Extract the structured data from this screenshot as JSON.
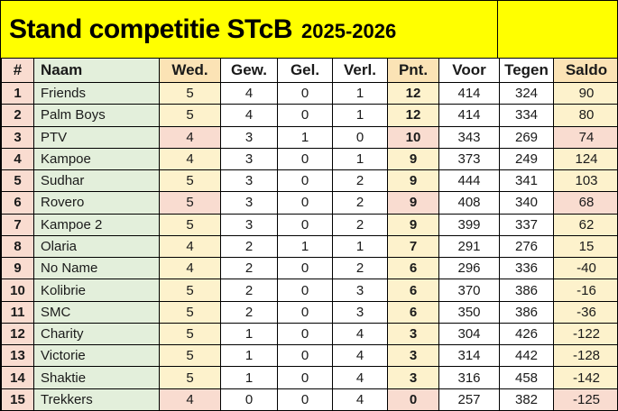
{
  "title": {
    "main": "Stand competitie STcB",
    "season": "2025-2026"
  },
  "colors": {
    "banner": "#FFFF00",
    "pink": "#F9DCD0",
    "green": "#E3EFDB",
    "yellow": "#FDF2CC",
    "tan": "#FBE3B5",
    "white": "#FFFFFF",
    "border": "#000000",
    "ink": "#1A1A1A"
  },
  "table": {
    "columns": [
      {
        "key": "pos",
        "label": "#"
      },
      {
        "key": "naam",
        "label": "Naam"
      },
      {
        "key": "wed",
        "label": "Wed."
      },
      {
        "key": "gew",
        "label": "Gew."
      },
      {
        "key": "gel",
        "label": "Gel."
      },
      {
        "key": "verl",
        "label": "Verl."
      },
      {
        "key": "pnt",
        "label": "Pnt."
      },
      {
        "key": "voor",
        "label": "Voor"
      },
      {
        "key": "tegen",
        "label": "Tegen"
      },
      {
        "key": "saldo",
        "label": "Saldo"
      }
    ],
    "highlight_columns": [
      "wed",
      "pnt",
      "saldo"
    ],
    "rows": [
      {
        "pos": "1",
        "naam": "Friends",
        "wed": "5",
        "gew": "4",
        "gel": "0",
        "verl": "1",
        "pnt": "12",
        "voor": "414",
        "tegen": "324",
        "saldo": "90",
        "tone": "yellow"
      },
      {
        "pos": "2",
        "naam": "Palm Boys",
        "wed": "5",
        "gew": "4",
        "gel": "0",
        "verl": "1",
        "pnt": "12",
        "voor": "414",
        "tegen": "334",
        "saldo": "80",
        "tone": "yellow"
      },
      {
        "pos": "3",
        "naam": "PTV",
        "wed": "4",
        "gew": "3",
        "gel": "1",
        "verl": "0",
        "pnt": "10",
        "voor": "343",
        "tegen": "269",
        "saldo": "74",
        "tone": "pink"
      },
      {
        "pos": "4",
        "naam": "Kampoe",
        "wed": "4",
        "gew": "3",
        "gel": "0",
        "verl": "1",
        "pnt": "9",
        "voor": "373",
        "tegen": "249",
        "saldo": "124",
        "tone": "yellow"
      },
      {
        "pos": "5",
        "naam": "Sudhar",
        "wed": "5",
        "gew": "3",
        "gel": "0",
        "verl": "2",
        "pnt": "9",
        "voor": "444",
        "tegen": "341",
        "saldo": "103",
        "tone": "yellow"
      },
      {
        "pos": "6",
        "naam": "Rovero",
        "wed": "5",
        "gew": "3",
        "gel": "0",
        "verl": "2",
        "pnt": "9",
        "voor": "408",
        "tegen": "340",
        "saldo": "68",
        "tone": "pink"
      },
      {
        "pos": "7",
        "naam": "Kampoe 2",
        "wed": "5",
        "gew": "3",
        "gel": "0",
        "verl": "2",
        "pnt": "9",
        "voor": "399",
        "tegen": "337",
        "saldo": "62",
        "tone": "yellow"
      },
      {
        "pos": "8",
        "naam": "Olaria",
        "wed": "4",
        "gew": "2",
        "gel": "1",
        "verl": "1",
        "pnt": "7",
        "voor": "291",
        "tegen": "276",
        "saldo": "15",
        "tone": "yellow"
      },
      {
        "pos": "9",
        "naam": "No Name",
        "wed": "4",
        "gew": "2",
        "gel": "0",
        "verl": "2",
        "pnt": "6",
        "voor": "296",
        "tegen": "336",
        "saldo": "-40",
        "tone": "yellow"
      },
      {
        "pos": "10",
        "naam": "Kolibrie",
        "wed": "5",
        "gew": "2",
        "gel": "0",
        "verl": "3",
        "pnt": "6",
        "voor": "370",
        "tegen": "386",
        "saldo": "-16",
        "tone": "yellow"
      },
      {
        "pos": "11",
        "naam": "SMC",
        "wed": "5",
        "gew": "2",
        "gel": "0",
        "verl": "3",
        "pnt": "6",
        "voor": "350",
        "tegen": "386",
        "saldo": "-36",
        "tone": "yellow"
      },
      {
        "pos": "12",
        "naam": "Charity",
        "wed": "5",
        "gew": "1",
        "gel": "0",
        "verl": "4",
        "pnt": "3",
        "voor": "304",
        "tegen": "426",
        "saldo": "-122",
        "tone": "yellow"
      },
      {
        "pos": "13",
        "naam": "Victorie",
        "wed": "5",
        "gew": "1",
        "gel": "0",
        "verl": "4",
        "pnt": "3",
        "voor": "314",
        "tegen": "442",
        "saldo": "-128",
        "tone": "yellow"
      },
      {
        "pos": "14",
        "naam": "Shaktie",
        "wed": "5",
        "gew": "1",
        "gel": "0",
        "verl": "4",
        "pnt": "3",
        "voor": "316",
        "tegen": "458",
        "saldo": "-142",
        "tone": "yellow"
      },
      {
        "pos": "15",
        "naam": "Trekkers",
        "wed": "4",
        "gew": "0",
        "gel": "0",
        "verl": "4",
        "pnt": "0",
        "voor": "257",
        "tegen": "382",
        "saldo": "-125",
        "tone": "pink"
      }
    ]
  }
}
